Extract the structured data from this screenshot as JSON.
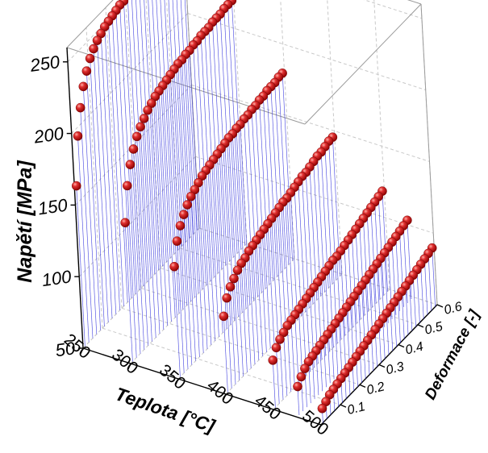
{
  "chart_data": {
    "type": "scatter",
    "style": "3d-scatter-with-drop-lines",
    "marker_color": "#cc1111",
    "dropline_color": "#3333dd",
    "grid": true,
    "axes": {
      "x": {
        "label": "Teplota [°C]",
        "range": [
          250,
          500
        ],
        "ticks": [
          "250",
          "300",
          "350",
          "400",
          "450",
          "500"
        ]
      },
      "y": {
        "label": "Deformace [-]",
        "range": [
          0,
          0.6
        ],
        "ticks": [
          "0.1",
          "0.2",
          "0.3",
          "0.4",
          "0.5",
          "0.6"
        ]
      },
      "z": {
        "label": "Napětí [MPa]",
        "range": [
          50,
          260
        ],
        "ticks": [
          "50",
          "100",
          "150",
          "200",
          "250"
        ]
      }
    },
    "series": [
      {
        "temperature": 250,
        "points": [
          [
            0.01,
            162
          ],
          [
            0.03,
            194
          ],
          [
            0.05,
            211
          ],
          [
            0.07,
            223
          ],
          [
            0.09,
            231
          ],
          [
            0.11,
            237
          ],
          [
            0.13,
            241
          ],
          [
            0.15,
            244
          ],
          [
            0.17,
            246
          ],
          [
            0.19,
            248
          ],
          [
            0.21,
            249
          ],
          [
            0.23,
            250
          ],
          [
            0.25,
            251
          ],
          [
            0.27,
            252
          ],
          [
            0.29,
            252
          ],
          [
            0.31,
            253
          ],
          [
            0.33,
            253
          ],
          [
            0.35,
            254
          ],
          [
            0.37,
            254
          ],
          [
            0.39,
            254
          ],
          [
            0.41,
            255
          ],
          [
            0.43,
            255
          ],
          [
            0.45,
            255
          ],
          [
            0.47,
            255
          ],
          [
            0.49,
            256
          ],
          [
            0.51,
            256
          ],
          [
            0.53,
            256
          ],
          [
            0.55,
            256
          ],
          [
            0.57,
            256
          ],
          [
            0.59,
            256
          ]
        ]
      },
      {
        "temperature": 300,
        "points": [
          [
            0.01,
            147
          ],
          [
            0.03,
            170
          ],
          [
            0.05,
            182
          ],
          [
            0.07,
            190
          ],
          [
            0.09,
            196
          ],
          [
            0.11,
            200
          ],
          [
            0.13,
            203
          ],
          [
            0.15,
            206
          ],
          [
            0.17,
            208
          ],
          [
            0.19,
            210
          ],
          [
            0.21,
            211
          ],
          [
            0.23,
            212
          ],
          [
            0.25,
            213
          ],
          [
            0.27,
            214
          ],
          [
            0.29,
            215
          ],
          [
            0.31,
            216
          ],
          [
            0.33,
            216
          ],
          [
            0.35,
            217
          ],
          [
            0.37,
            217
          ],
          [
            0.39,
            218
          ],
          [
            0.41,
            218
          ],
          [
            0.43,
            219
          ],
          [
            0.45,
            219
          ],
          [
            0.47,
            219
          ],
          [
            0.49,
            220
          ],
          [
            0.51,
            220
          ],
          [
            0.53,
            220
          ],
          [
            0.55,
            221
          ],
          [
            0.57,
            221
          ],
          [
            0.59,
            221
          ]
        ]
      },
      {
        "temperature": 350,
        "points": [
          [
            0.01,
            127
          ],
          [
            0.03,
            142
          ],
          [
            0.05,
            150
          ],
          [
            0.07,
            155
          ],
          [
            0.09,
            159
          ],
          [
            0.11,
            162
          ],
          [
            0.13,
            164
          ],
          [
            0.15,
            166
          ],
          [
            0.17,
            168
          ],
          [
            0.19,
            169
          ],
          [
            0.21,
            170
          ],
          [
            0.23,
            171
          ],
          [
            0.25,
            172
          ],
          [
            0.27,
            173
          ],
          [
            0.29,
            174
          ],
          [
            0.31,
            175
          ],
          [
            0.33,
            175
          ],
          [
            0.35,
            176
          ],
          [
            0.37,
            176
          ],
          [
            0.39,
            177
          ],
          [
            0.41,
            177
          ],
          [
            0.43,
            178
          ],
          [
            0.45,
            178
          ],
          [
            0.47,
            179
          ],
          [
            0.49,
            179
          ],
          [
            0.51,
            180
          ],
          [
            0.53,
            180
          ],
          [
            0.55,
            180
          ],
          [
            0.57,
            181
          ],
          [
            0.59,
            181
          ]
        ]
      },
      {
        "temperature": 400,
        "points": [
          [
            0.01,
            103
          ],
          [
            0.03,
            113
          ],
          [
            0.05,
            118
          ],
          [
            0.07,
            121
          ],
          [
            0.09,
            124
          ],
          [
            0.11,
            126
          ],
          [
            0.13,
            127
          ],
          [
            0.15,
            129
          ],
          [
            0.17,
            130
          ],
          [
            0.19,
            131
          ],
          [
            0.21,
            132
          ],
          [
            0.23,
            133
          ],
          [
            0.25,
            134
          ],
          [
            0.27,
            135
          ],
          [
            0.29,
            136
          ],
          [
            0.31,
            137
          ],
          [
            0.33,
            138
          ],
          [
            0.35,
            138
          ],
          [
            0.37,
            139
          ],
          [
            0.39,
            140
          ],
          [
            0.41,
            141
          ],
          [
            0.43,
            142
          ],
          [
            0.45,
            142
          ],
          [
            0.47,
            143
          ],
          [
            0.49,
            144
          ],
          [
            0.51,
            145
          ],
          [
            0.53,
            145
          ],
          [
            0.55,
            146
          ],
          [
            0.57,
            147
          ],
          [
            0.59,
            147
          ]
        ]
      },
      {
        "temperature": 450,
        "points": [
          [
            0.01,
            83
          ],
          [
            0.03,
            89
          ],
          [
            0.05,
            92
          ],
          [
            0.07,
            94
          ],
          [
            0.09,
            96
          ],
          [
            0.11,
            97
          ],
          [
            0.13,
            98
          ],
          [
            0.15,
            99
          ],
          [
            0.17,
            100
          ],
          [
            0.19,
            101
          ],
          [
            0.21,
            102
          ],
          [
            0.23,
            103
          ],
          [
            0.25,
            104
          ],
          [
            0.27,
            105
          ],
          [
            0.29,
            106
          ],
          [
            0.31,
            107
          ],
          [
            0.33,
            108
          ],
          [
            0.35,
            108
          ],
          [
            0.37,
            109
          ],
          [
            0.39,
            110
          ],
          [
            0.41,
            111
          ],
          [
            0.43,
            112
          ],
          [
            0.45,
            113
          ],
          [
            0.47,
            114
          ],
          [
            0.49,
            115
          ],
          [
            0.51,
            116
          ],
          [
            0.53,
            117
          ],
          [
            0.55,
            118
          ],
          [
            0.57,
            119
          ],
          [
            0.59,
            120
          ]
        ]
      },
      {
        "temperature": 475,
        "points": [
          [
            0.01,
            70
          ],
          [
            0.03,
            74
          ],
          [
            0.05,
            77
          ],
          [
            0.07,
            79
          ],
          [
            0.09,
            80
          ],
          [
            0.11,
            81
          ],
          [
            0.13,
            82
          ],
          [
            0.15,
            83
          ],
          [
            0.17,
            84
          ],
          [
            0.19,
            85
          ],
          [
            0.21,
            86
          ],
          [
            0.23,
            87
          ],
          [
            0.25,
            88
          ],
          [
            0.27,
            89
          ],
          [
            0.29,
            90
          ],
          [
            0.31,
            91
          ],
          [
            0.33,
            92
          ],
          [
            0.35,
            93
          ],
          [
            0.37,
            94
          ],
          [
            0.39,
            95
          ],
          [
            0.41,
            96
          ],
          [
            0.43,
            97
          ],
          [
            0.45,
            98
          ],
          [
            0.47,
            99
          ],
          [
            0.49,
            100
          ],
          [
            0.51,
            101
          ],
          [
            0.53,
            102
          ],
          [
            0.55,
            103
          ],
          [
            0.57,
            104
          ],
          [
            0.59,
            105
          ]
        ]
      },
      {
        "temperature": 500,
        "points": [
          [
            0.01,
            60
          ],
          [
            0.03,
            62
          ],
          [
            0.05,
            64
          ],
          [
            0.07,
            65
          ],
          [
            0.09,
            66
          ],
          [
            0.11,
            67
          ],
          [
            0.13,
            68
          ],
          [
            0.15,
            69
          ],
          [
            0.17,
            70
          ],
          [
            0.19,
            71
          ],
          [
            0.21,
            72
          ],
          [
            0.23,
            73
          ],
          [
            0.25,
            74
          ],
          [
            0.27,
            75
          ],
          [
            0.29,
            76
          ],
          [
            0.31,
            77
          ],
          [
            0.33,
            78
          ],
          [
            0.35,
            79
          ],
          [
            0.37,
            80
          ],
          [
            0.39,
            81
          ],
          [
            0.41,
            82
          ],
          [
            0.43,
            83
          ],
          [
            0.45,
            84
          ],
          [
            0.47,
            85
          ],
          [
            0.49,
            86
          ],
          [
            0.51,
            87
          ],
          [
            0.53,
            88
          ],
          [
            0.55,
            89
          ],
          [
            0.57,
            90
          ],
          [
            0.59,
            91
          ]
        ]
      }
    ]
  }
}
